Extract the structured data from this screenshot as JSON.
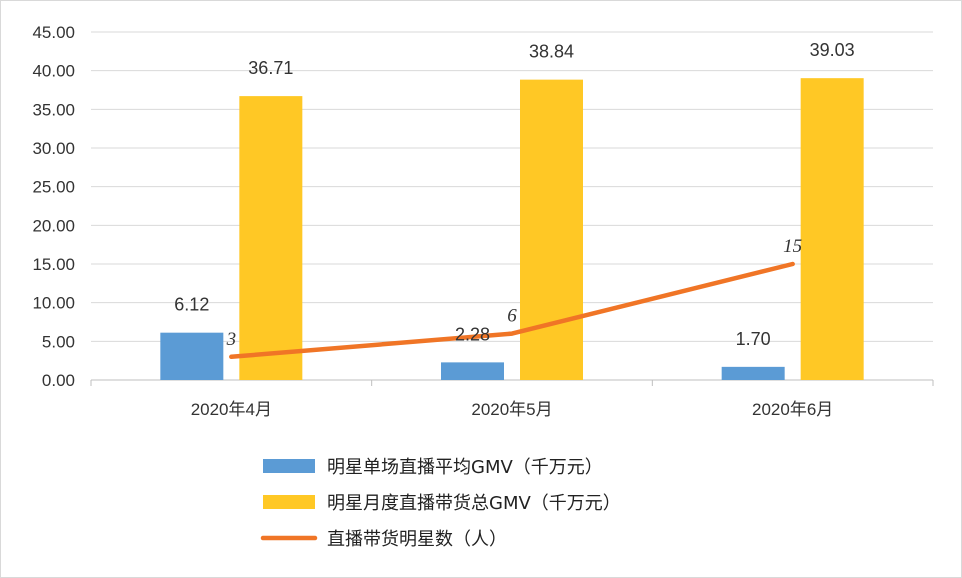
{
  "chart_data": {
    "type": "bar",
    "categories": [
      "2020年4月",
      "2020年5月",
      "2020年6月"
    ],
    "ylim": [
      0,
      45
    ],
    "yticks": [
      "0.00",
      "5.00",
      "10.00",
      "15.00",
      "20.00",
      "25.00",
      "30.00",
      "35.00",
      "40.00",
      "45.00"
    ],
    "grid": true,
    "legend_position": "bottom",
    "series": [
      {
        "name": "明星单场直播平均GMV（千万元）",
        "type": "bar",
        "color": "#5b9bd5",
        "values": [
          6.12,
          2.28,
          1.7
        ],
        "labels": [
          "6.12",
          "2.28",
          "1.70"
        ]
      },
      {
        "name": "明星月度直播带货总GMV（千万元）",
        "type": "bar",
        "color": "#ffc825",
        "values": [
          36.71,
          38.84,
          39.03
        ],
        "labels": [
          "36.71",
          "38.84",
          "39.03"
        ]
      },
      {
        "name": "直播带货明星数（人）",
        "type": "line",
        "color": "#f07526",
        "values": [
          3,
          6,
          15
        ],
        "labels": [
          "3",
          "6",
          "15"
        ]
      }
    ]
  }
}
